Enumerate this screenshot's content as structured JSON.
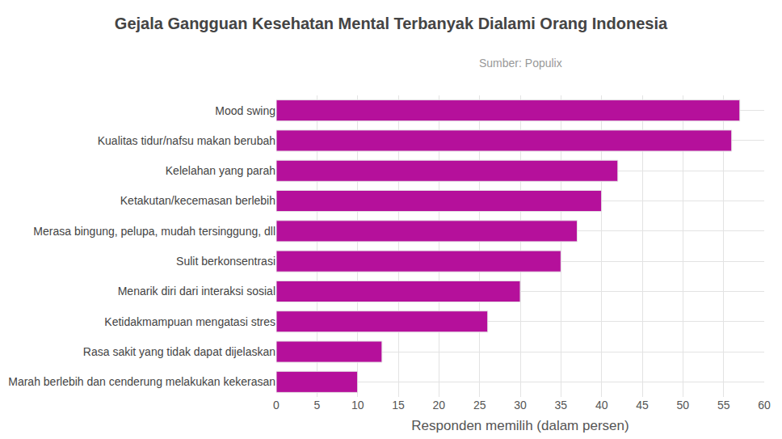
{
  "chart_data": {
    "type": "bar",
    "orientation": "horizontal",
    "title": "Gejala Gangguan Kesehatan Mental Terbanyak Dialami Orang Indonesia",
    "subtitle": "Sumber: Populix",
    "x_label": "Responden memilih (dalam persen)",
    "categories": [
      "Mood swing",
      "Kualitas tidur/nafsu makan berubah",
      "Kelelahan yang parah",
      "Ketakutan/kecemasan berlebih",
      "Merasa bingung, pelupa, mudah tersinggung, dll",
      "Sulit berkonsentrasi",
      "Menarik diri dari interaksi sosial",
      "Ketidakmampuan mengatasi stres",
      "Rasa sakit yang tidak dapat dijelaskan",
      "Marah berlebih dan cenderung melakukan kekerasan"
    ],
    "values": [
      57,
      56,
      42,
      40,
      37,
      35,
      30,
      26,
      13,
      10
    ],
    "color": "#b5109b",
    "xlim": [
      0,
      60
    ],
    "xticks": [
      0,
      5,
      10,
      15,
      20,
      25,
      30,
      35,
      40,
      45,
      50,
      55,
      60
    ],
    "grid": true
  }
}
